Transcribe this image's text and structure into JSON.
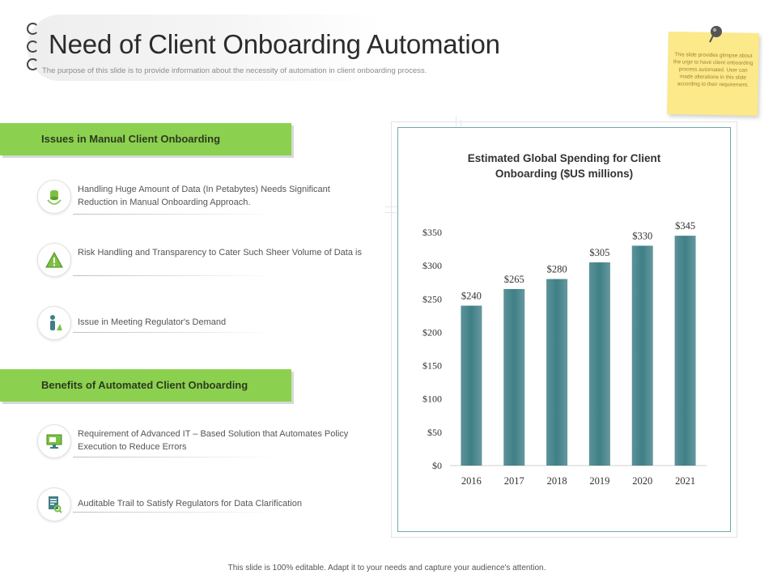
{
  "header": {
    "title": "Need of Client Onboarding Automation",
    "subtitle": "The purpose of this slide is to provide information about the necessity of automation in client onboarding process."
  },
  "sticky_note": {
    "text": "This slide provides glimpse about the urge to have client onboarding process automated. User can made alterations in this slide according to their requirement."
  },
  "issues": {
    "heading": "Issues in Manual Client Onboarding",
    "items": [
      {
        "icon": "database-icon",
        "text": "Handling Huge Amount of Data (In Petabytes) Needs Significant Reduction in Manual Onboarding Approach."
      },
      {
        "icon": "warning-icon",
        "text": "Risk Handling and Transparency  to Cater Such Sheer Volume of Data is"
      },
      {
        "icon": "person-icon",
        "text": "Issue in Meeting Regulator's Demand"
      }
    ]
  },
  "benefits": {
    "heading": "Benefits of Automated Client Onboarding",
    "items": [
      {
        "icon": "monitor-icon",
        "text": "Requirement  of Advanced IT – Based Solution that Automates Policy Execution to Reduce Errors"
      },
      {
        "icon": "document-search-icon",
        "text": "Auditable Trail to Satisfy Regulators for Data Clarification"
      }
    ]
  },
  "chart_data": {
    "type": "bar",
    "title_lines": [
      "Estimated Global Spending for Client",
      "Onboarding ($US millions)"
    ],
    "categories": [
      "2016",
      "2017",
      "2018",
      "2019",
      "2020",
      "2021"
    ],
    "values": [
      240,
      265,
      280,
      305,
      330,
      345
    ],
    "data_labels": [
      "$240",
      "$265",
      "$280",
      "$305",
      "$330",
      "$345"
    ],
    "yticks": [
      "$0",
      "$50",
      "$100",
      "$150",
      "$200",
      "$250",
      "$300",
      "$350"
    ],
    "ylim": [
      0,
      350
    ],
    "grid": false,
    "bar_color": "#3f7f86"
  },
  "footer": {
    "text": "This slide is 100% editable. Adapt it to your needs and capture your audience's attention."
  },
  "colors": {
    "accent_green": "#8bd14f",
    "chart_border": "#6ea9a8",
    "sticky_yellow": "#fbe98a"
  }
}
